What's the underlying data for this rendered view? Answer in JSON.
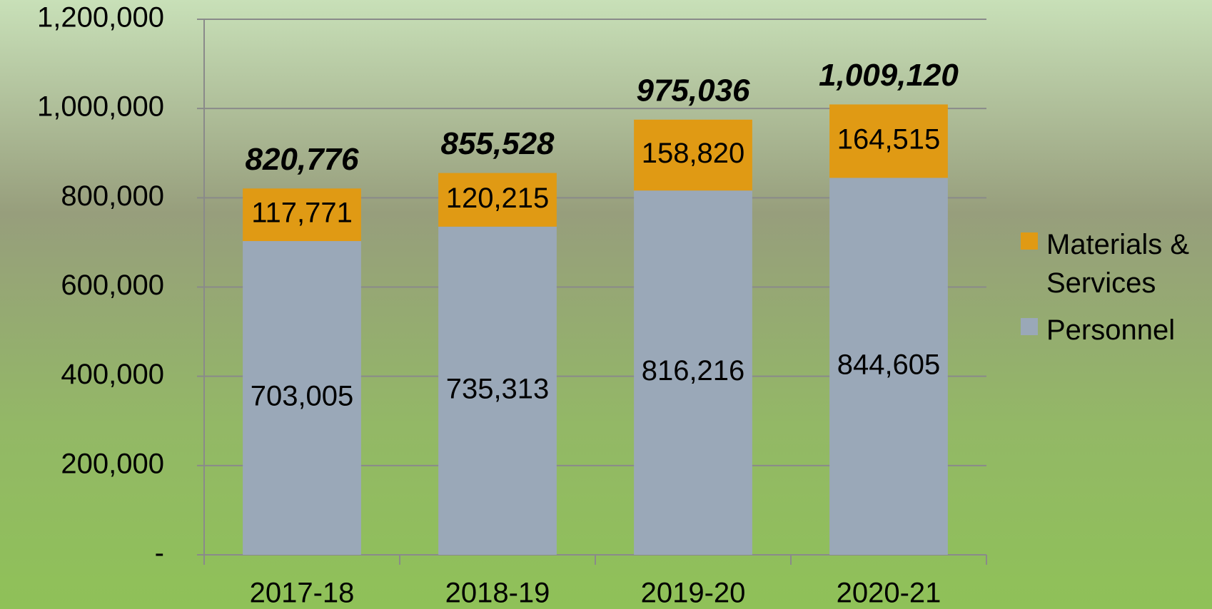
{
  "chart_data": {
    "type": "stacked_bar",
    "categories": [
      "2017-18",
      "2018-19",
      "2019-20",
      "2020-21"
    ],
    "series": [
      {
        "name": "Personnel",
        "color": "#9aa8b8",
        "values": [
          703005,
          735313,
          816216,
          844605
        ],
        "value_labels": [
          "703,005",
          "735,313",
          "816,216",
          "844,605"
        ]
      },
      {
        "name": "Materials & Services",
        "color": "#e09a14",
        "values": [
          117771,
          120215,
          158820,
          164515
        ],
        "value_labels": [
          "117,771",
          "120,215",
          "158,820",
          "164,515"
        ]
      }
    ],
    "totals": [
      820776,
      855528,
      975036,
      1009120
    ],
    "total_labels": [
      "820,776",
      "855,528",
      "975,036",
      "1,009,120"
    ],
    "ylim": [
      0,
      1200000
    ],
    "yticks": [
      {
        "value": 0,
        "label": "-"
      },
      {
        "value": 200000,
        "label": "200,000"
      },
      {
        "value": 400000,
        "label": "400,000"
      },
      {
        "value": 600000,
        "label": "600,000"
      },
      {
        "value": 800000,
        "label": "800,000"
      },
      {
        "value": 1000000,
        "label": "1,000,000"
      },
      {
        "value": 1200000,
        "label": "1,200,000"
      }
    ],
    "grid": true,
    "legend": "right"
  }
}
